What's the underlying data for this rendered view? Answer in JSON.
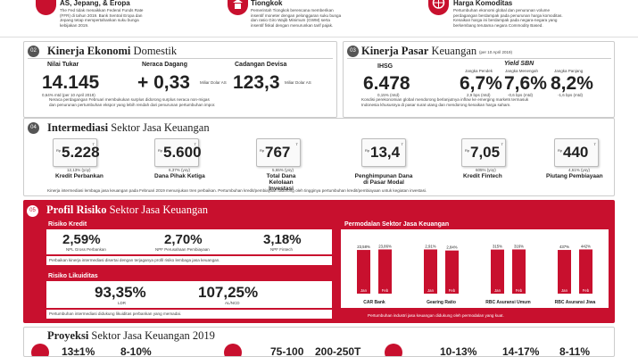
{
  "top": {
    "as_title": "AS, Jepang, & Eropa",
    "as_text": [
      "The Fed tidak menaikkan Federal Funds Rate",
      "(FFR) di tahun 2019. Bank Sentral Eropa dan",
      "Jepang tetap mempertahankan suku bunga",
      "kebijakan 2019."
    ],
    "tiongkok_title": "Tiongkok",
    "tiongkok_text": [
      "Pemerintah Tiongkok berencana memberikan",
      "insentif moneter dengan pelonggaran suku bunga",
      "dan rasio Giro Wajib Minimum (GWM) serta",
      "insentif fiskal dengan menurunkan tarif pajak."
    ],
    "komoditas_title": "Harga Komoditas",
    "komoditas_text": [
      "Pertumbuhan ekonomi global dan penurunan volume",
      "perdagangan berdampak pada penurunan harga komoditas.",
      "Kenaikan harga ini berdampak pada negara-negara yang",
      "berkembang terutama negara Commodity Based."
    ]
  },
  "kinerja_ekonomi": {
    "number": "02",
    "title_bold": "Kinerja Ekonomi",
    "title_light": " Domestik",
    "items": [
      {
        "label": "Nilai Tukar",
        "value": "14.145",
        "unit": "",
        "note": "0,64% mtd (per 10 April 2019)"
      },
      {
        "label": "Neraca Dagang",
        "value": "+ 0,33",
        "unit": "Miliar Dolar AS",
        "note": ""
      },
      {
        "label": "Cadangan Devisa",
        "value": "123,3",
        "unit": "Miliar Dolar AS",
        "note": ""
      }
    ],
    "footnote": [
      "Neraca perdagangan Februari membukukan surplus didorong surplus neraca non-migas",
      "dan penurunan pertumbuhan ekspor yang lebih rendah dari penurunan pertumbuhan impor."
    ]
  },
  "kinerja_pasar": {
    "number": "03",
    "title_bold": "Kinerja Pasar",
    "title_light": " Keuangan",
    "date_note": "(per 10 April 2019)",
    "ihsg_label": "IHSG",
    "ihsg_value": "6.478",
    "ihsg_note": "0,15% (mtd)",
    "sbn_label": "Yield SBN",
    "sbn_items": [
      {
        "label": "Jangka Pendek",
        "value": "6,7%",
        "note": "2,9 bps (mtd)"
      },
      {
        "label": "Jangka Menengah",
        "value": "7,6%",
        "note": "-0,6 bps (mtd)"
      },
      {
        "label": "Jangka Panjang",
        "value": "8,2%",
        "note": "-1,6 bps (mtd)"
      }
    ],
    "footnote": [
      "Kondisi perekonomian global mendorong berlanjutnya inflow ke emerging markets termasuk",
      "Indonesia khususnya di pasar surat utang dan mendorong kenaikan harga saham."
    ]
  },
  "intermediasi": {
    "number": "04",
    "title_bold": "Intermediasi",
    "title_light": " Sektor Jasa Keuangan",
    "cards": [
      {
        "rp": "Rp",
        "value": "5.228",
        "unit": "T",
        "growth": "12,13% (yoy)",
        "label": [
          "Kredit Perbankan"
        ]
      },
      {
        "rp": "Rp",
        "value": "5.600",
        "unit": "T",
        "growth": "6,37% (yoy)",
        "label": [
          "Dana Pihak Ketiga"
        ]
      },
      {
        "rp": "Rp",
        "value": "767",
        "unit": "T",
        "growth": "5,65% (yoy)",
        "label": [
          "Total Dana",
          "Kelolaan Investasi"
        ]
      },
      {
        "rp": "Rp",
        "value": "13,4",
        "unit": "T",
        "growth": "",
        "label": [
          "Penghimpunan Dana",
          "di Pasar Modal"
        ]
      },
      {
        "rp": "Rp",
        "value": "7,05",
        "unit": "T",
        "growth": "605% (yoy)",
        "label": [
          "Kredit Fintech"
        ]
      },
      {
        "rp": "Rp",
        "value": "440",
        "unit": "T",
        "growth": "4,61% (yoy)",
        "label": [
          "Piutang Pembiayaan"
        ]
      }
    ],
    "footnote": "Kinerja intermediasi lembaga jasa keuangan pada Februari 2019 menunjukan tren perbaikan. Pertumbuhan kredit/pembiayaan didorong oleh tingginya pertumbuhan kredit/pembiayaan untuk kegiatan investasi."
  },
  "profil_risiko": {
    "number": "05",
    "title_bold": "Profil Risiko",
    "title_light": " Sektor Jasa Keuangan",
    "risiko_kredit": {
      "title": "Risiko Kredit",
      "items": [
        {
          "value": "2,59%",
          "label": "NPL Gross Perbankan"
        },
        {
          "value": "2,70%",
          "label": "NPF Perusahaan Pembiayaan"
        },
        {
          "value": "3,18%",
          "label": "NPF Fintech"
        }
      ],
      "footnote": "Perbaikan kinerja intermediasi disertai dengan terjaganya profil risiko lembaga jasa keuangan."
    },
    "risiko_likuiditas": {
      "title": "Risiko Likuiditas",
      "items": [
        {
          "value": "93,35%",
          "label": "LDR"
        },
        {
          "value": "107,25%",
          "label": "AL/NCD"
        }
      ],
      "footnote": "Pertumbuhan intermediasi didukung likuiditas perbankan yang memadai."
    },
    "permodalan": {
      "title": "Permodalan Sektor Jasa Keuangan",
      "footnote": "Pertumbuhan industri jasa keuangan didukung oleh permodalan yang kuat."
    }
  },
  "chart_data": {
    "type": "bar",
    "title": "Permodalan Sektor Jasa Keuangan",
    "groups": [
      {
        "name": "CAR Bank",
        "categories": [
          "Jan",
          "Feb"
        ],
        "values": [
          23.58,
          23.86
        ],
        "labels": [
          "23,58%",
          "23,86%"
        ]
      },
      {
        "name": "Gearing Ratio",
        "categories": [
          "Jan",
          "Feb"
        ],
        "values": [
          2.91,
          2.84
        ],
        "labels": [
          "2,91%",
          "2,84%"
        ]
      },
      {
        "name": "RBC Asuransi Umum",
        "categories": [
          "Jan",
          "Feb"
        ],
        "values": [
          315,
          316
        ],
        "labels": [
          "315%",
          "316%"
        ]
      },
      {
        "name": "RBC Asuransi Jiwa",
        "categories": [
          "Jan",
          "Feb"
        ],
        "values": [
          437,
          442
        ],
        "labels": [
          "437%",
          "442%"
        ]
      }
    ]
  },
  "proyeksi": {
    "title_bold": "Proyeksi",
    "title_light": " Sektor Jasa Keuangan 2019",
    "values": [
      "13±1%",
      "8-10%",
      "75-100",
      "200-250T",
      "10-13%",
      "14-17%",
      "8-11%"
    ]
  },
  "colors": {
    "accent": "#c8102e",
    "dark": "#222222",
    "panel": "#ffffff"
  }
}
